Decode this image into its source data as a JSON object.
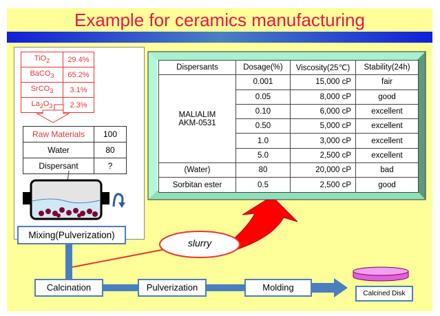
{
  "title": "Example for ceramics manufacturing",
  "composition": [
    {
      "name": "TiO",
      "sub": "2",
      "pct": "29.4%"
    },
    {
      "name": "BaCO",
      "sub": "3",
      "pct": "65.2%"
    },
    {
      "name": "SrCO",
      "sub": "3",
      "pct": "3.1%"
    },
    {
      "name": "La",
      "sub": "2",
      "name2": "O",
      "sub2": "3",
      "pct": "2.3%"
    }
  ],
  "recipe": [
    {
      "item": "Raw Materials",
      "amount": "100"
    },
    {
      "item": "Water",
      "amount": "80"
    },
    {
      "item": "Dispersant",
      "amount": "?"
    }
  ],
  "process": {
    "mixing": "Mixing(Pulverization)",
    "slurry": "slurry",
    "calcination": "Calcination",
    "pulverization": "Pulverization",
    "molding": "Molding",
    "product": "Calcined Disk"
  },
  "results": {
    "headers": [
      "Dispersants",
      "Dosage(%)",
      "Viscosity(25℃)",
      "Stability(24h)"
    ],
    "malialim": {
      "line1": "MALIALIM",
      "line2": "AKM-0531"
    },
    "rows": [
      {
        "dosage": "0.001",
        "viscosity": "15,000  cP",
        "stability": "fair"
      },
      {
        "dosage": "0.05",
        "viscosity": "8,000  cP",
        "stability": "good"
      },
      {
        "dosage": "0.10",
        "viscosity": "6,000  cP",
        "stability": "excellent"
      },
      {
        "dosage": "0.50",
        "viscosity": "5,000  cP",
        "stability": "excellent"
      },
      {
        "dosage": "1.0",
        "viscosity": "3,000  cP",
        "stability": "excellent"
      },
      {
        "dosage": "5.0",
        "viscosity": "2,500  cP",
        "stability": "excellent"
      }
    ],
    "others": [
      {
        "name": "(Water)",
        "dosage": "80",
        "viscosity": "20,000  cP",
        "stability": "bad"
      },
      {
        "name": "Sorbitan ester",
        "dosage": "0.5",
        "viscosity": "2,500  cP",
        "stability": "good"
      }
    ]
  },
  "colors": {
    "title": "#e8164b",
    "background": "#ffff99",
    "flow": "#4a7fbf",
    "frame": "#8fe0b8",
    "arrow": "#ff0000"
  }
}
